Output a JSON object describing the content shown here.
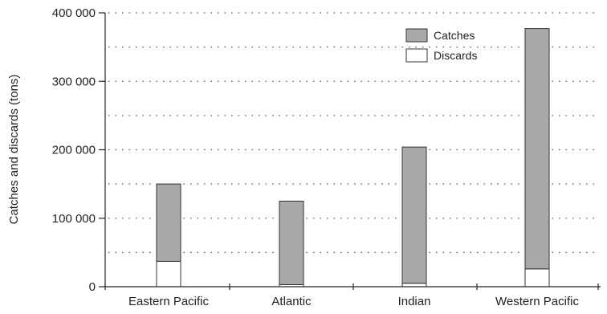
{
  "chart_data": {
    "type": "bar",
    "stacked": true,
    "categories": [
      "Eastern Pacific",
      "Atlantic",
      "Indian",
      "Western Pacific"
    ],
    "series": [
      {
        "name": "Discards",
        "values": [
          37000,
          3000,
          5000,
          26000
        ],
        "color": "#ffffff"
      },
      {
        "name": "Catches",
        "values": [
          113000,
          122000,
          199000,
          351000
        ],
        "color": "#a9a9a9"
      }
    ],
    "title": "",
    "xlabel": "",
    "ylabel": "Catches and discards (tons)",
    "ylim": [
      0,
      400000
    ],
    "yticks": [
      0,
      100000,
      200000,
      300000,
      400000
    ],
    "ytick_labels": [
      "0",
      "100 000",
      "200 000",
      "300 000",
      "400 000"
    ],
    "grid": "dotted horizontal",
    "legend": {
      "position": "top-right",
      "items": [
        {
          "label": "Catches",
          "color": "#a9a9a9"
        },
        {
          "label": "Discards",
          "color": "#ffffff"
        }
      ]
    }
  }
}
